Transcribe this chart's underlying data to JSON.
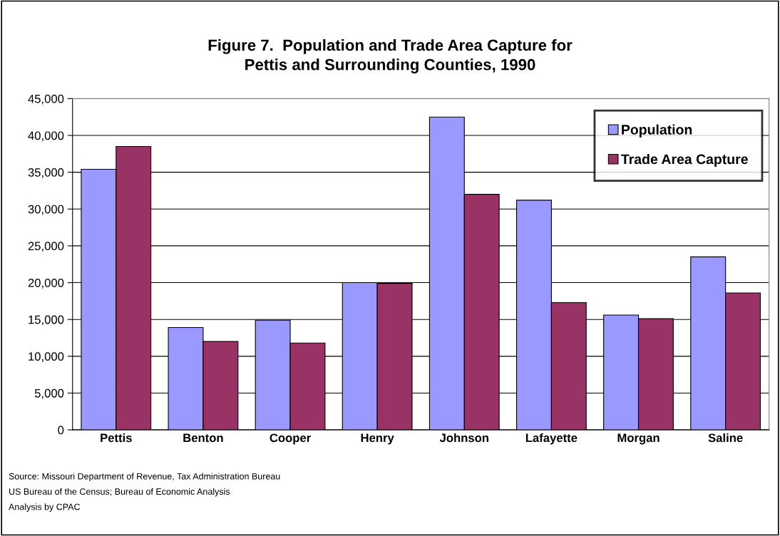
{
  "chart_data": {
    "type": "bar",
    "title": "Figure 7.  Population and Trade Area Capture for\nPettis and Surrounding Counties, 1990",
    "categories": [
      "Pettis",
      "Benton",
      "Cooper",
      "Henry",
      "Johnson",
      "Lafayette",
      "Morgan",
      "Saline"
    ],
    "series": [
      {
        "name": "Population",
        "color": "#9999ff",
        "values": [
          35400,
          13900,
          14900,
          20000,
          42500,
          31200,
          15600,
          23500
        ]
      },
      {
        "name": "Trade Area Capture",
        "color": "#993366",
        "values": [
          38500,
          12000,
          11800,
          19900,
          32000,
          17300,
          15100,
          18600
        ]
      }
    ],
    "ylim": [
      0,
      45000
    ],
    "yticks": [
      {
        "value": 0,
        "label": "0"
      },
      {
        "value": 5000,
        "label": "5,000"
      },
      {
        "value": 10000,
        "label": "10,000"
      },
      {
        "value": 15000,
        "label": "15,000"
      },
      {
        "value": 20000,
        "label": "20,000"
      },
      {
        "value": 25000,
        "label": "25,000"
      },
      {
        "value": 30000,
        "label": "30,000"
      },
      {
        "value": 35000,
        "label": "35,000"
      },
      {
        "value": 40000,
        "label": "40,000"
      },
      {
        "value": 45000,
        "label": "45,000"
      }
    ],
    "grid": "y",
    "legend": "top right",
    "annotations": [
      "Source: Missouri Department of Revenue, Tax Administration Bureau",
      "US Bureau of the Census; Bureau of Economic Analysis",
      "Analysis by CPAC"
    ]
  }
}
